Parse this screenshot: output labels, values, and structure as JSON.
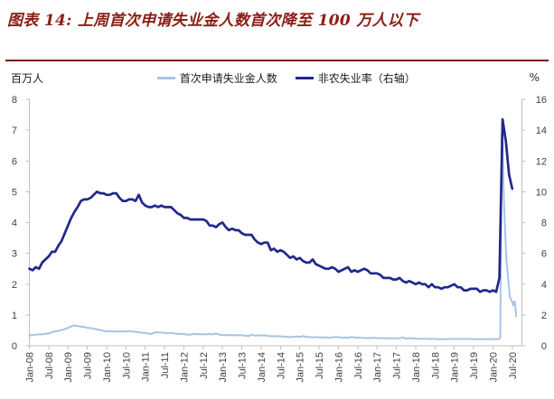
{
  "title": "图表 14: 上周首次申请失业金人数首次降至 100 万人以下",
  "colors": {
    "title_red": "#8B1E14",
    "rule_red": "#7A130D",
    "claims_blue": "#A6C4E4",
    "unemployment_navy": "#20288C",
    "axis_line": "#BFBFBF",
    "tick_text": "#404040"
  },
  "chart_data": {
    "type": "line",
    "title": "上周首次申请失业金人数首次降至 100 万人以下",
    "legend_position": "top",
    "grid": false,
    "x_tick_labels": [
      "Jan-08",
      "Jul-08",
      "Jan-09",
      "Jul-09",
      "Jan-10",
      "Jul-10",
      "Jan-11",
      "Jul-11",
      "Jan-12",
      "Jul-12",
      "Jan-13",
      "Jul-13",
      "Jan-14",
      "Jul-14",
      "Jan-15",
      "Jul-15",
      "Jan-16",
      "Jul-16",
      "Jan-17",
      "Jul-17",
      "Jan-18",
      "Jul-18",
      "Jan-19",
      "Jul-19",
      "Jan-20",
      "Jul-20"
    ],
    "left_axis": {
      "label": "百万人",
      "range": [
        0,
        8
      ],
      "tick_step": 1
    },
    "right_axis": {
      "label": "%",
      "range": [
        0,
        16
      ],
      "tick_step": 2
    },
    "x_months_span": 153,
    "series": [
      {
        "name": "首次申请失业金人数",
        "axis": "left",
        "unit": "百万人",
        "color": "#A6C4E4",
        "points_note": "pairs of [months since Jan-2008, millions of claims]; weekly detail around the 2020 spike",
        "points": [
          [
            0,
            0.33
          ],
          [
            1,
            0.35
          ],
          [
            2,
            0.36
          ],
          [
            3,
            0.37
          ],
          [
            4,
            0.37
          ],
          [
            5,
            0.39
          ],
          [
            6,
            0.4
          ],
          [
            7,
            0.44
          ],
          [
            8,
            0.47
          ],
          [
            9,
            0.48
          ],
          [
            10,
            0.51
          ],
          [
            11,
            0.54
          ],
          [
            12,
            0.58
          ],
          [
            13,
            0.63
          ],
          [
            14,
            0.66
          ],
          [
            15,
            0.64
          ],
          [
            16,
            0.62
          ],
          [
            17,
            0.61
          ],
          [
            18,
            0.58
          ],
          [
            19,
            0.57
          ],
          [
            20,
            0.55
          ],
          [
            21,
            0.53
          ],
          [
            22,
            0.51
          ],
          [
            23,
            0.48
          ],
          [
            24,
            0.47
          ],
          [
            25,
            0.47
          ],
          [
            26,
            0.46
          ],
          [
            27,
            0.46
          ],
          [
            28,
            0.46
          ],
          [
            29,
            0.47
          ],
          [
            30,
            0.46
          ],
          [
            31,
            0.48
          ],
          [
            32,
            0.46
          ],
          [
            33,
            0.45
          ],
          [
            34,
            0.44
          ],
          [
            35,
            0.42
          ],
          [
            36,
            0.42
          ],
          [
            37,
            0.39
          ],
          [
            38,
            0.39
          ],
          [
            39,
            0.43
          ],
          [
            40,
            0.43
          ],
          [
            41,
            0.43
          ],
          [
            42,
            0.42
          ],
          [
            43,
            0.41
          ],
          [
            44,
            0.42
          ],
          [
            45,
            0.4
          ],
          [
            46,
            0.39
          ],
          [
            47,
            0.38
          ],
          [
            48,
            0.38
          ],
          [
            49,
            0.36
          ],
          [
            50,
            0.36
          ],
          [
            51,
            0.39
          ],
          [
            52,
            0.37
          ],
          [
            53,
            0.38
          ],
          [
            54,
            0.37
          ],
          [
            55,
            0.37
          ],
          [
            56,
            0.38
          ],
          [
            57,
            0.37
          ],
          [
            58,
            0.4
          ],
          [
            59,
            0.36
          ],
          [
            60,
            0.35
          ],
          [
            61,
            0.35
          ],
          [
            62,
            0.34
          ],
          [
            63,
            0.34
          ],
          [
            64,
            0.34
          ],
          [
            65,
            0.35
          ],
          [
            66,
            0.34
          ],
          [
            67,
            0.33
          ],
          [
            68,
            0.31
          ],
          [
            69,
            0.36
          ],
          [
            70,
            0.33
          ],
          [
            71,
            0.34
          ],
          [
            72,
            0.33
          ],
          [
            73,
            0.34
          ],
          [
            74,
            0.32
          ],
          [
            75,
            0.31
          ],
          [
            76,
            0.31
          ],
          [
            77,
            0.31
          ],
          [
            78,
            0.3
          ],
          [
            79,
            0.3
          ],
          [
            80,
            0.29
          ],
          [
            81,
            0.28
          ],
          [
            82,
            0.29
          ],
          [
            83,
            0.3
          ],
          [
            84,
            0.29
          ],
          [
            85,
            0.31
          ],
          [
            86,
            0.29
          ],
          [
            87,
            0.28
          ],
          [
            88,
            0.27
          ],
          [
            89,
            0.28
          ],
          [
            90,
            0.27
          ],
          [
            91,
            0.27
          ],
          [
            92,
            0.27
          ],
          [
            93,
            0.26
          ],
          [
            94,
            0.27
          ],
          [
            95,
            0.28
          ],
          [
            96,
            0.28
          ],
          [
            97,
            0.26
          ],
          [
            98,
            0.27
          ],
          [
            99,
            0.26
          ],
          [
            100,
            0.28
          ],
          [
            101,
            0.27
          ],
          [
            102,
            0.26
          ],
          [
            103,
            0.26
          ],
          [
            104,
            0.25
          ],
          [
            105,
            0.25
          ],
          [
            106,
            0.25
          ],
          [
            107,
            0.26
          ],
          [
            108,
            0.25
          ],
          [
            109,
            0.24
          ],
          [
            110,
            0.25
          ],
          [
            111,
            0.24
          ],
          [
            112,
            0.24
          ],
          [
            113,
            0.24
          ],
          [
            114,
            0.24
          ],
          [
            115,
            0.24
          ],
          [
            116,
            0.27
          ],
          [
            117,
            0.23
          ],
          [
            118,
            0.24
          ],
          [
            119,
            0.24
          ],
          [
            120,
            0.23
          ],
          [
            121,
            0.22
          ],
          [
            122,
            0.23
          ],
          [
            123,
            0.23
          ],
          [
            124,
            0.22
          ],
          [
            125,
            0.22
          ],
          [
            126,
            0.22
          ],
          [
            127,
            0.21
          ],
          [
            128,
            0.21
          ],
          [
            129,
            0.21
          ],
          [
            130,
            0.22
          ],
          [
            131,
            0.22
          ],
          [
            132,
            0.22
          ],
          [
            133,
            0.22
          ],
          [
            134,
            0.22
          ],
          [
            135,
            0.22
          ],
          [
            136,
            0.22
          ],
          [
            137,
            0.22
          ],
          [
            138,
            0.21
          ],
          [
            139,
            0.21
          ],
          [
            140,
            0.21
          ],
          [
            141,
            0.21
          ],
          [
            142,
            0.21
          ],
          [
            143,
            0.22
          ],
          [
            144,
            0.21
          ],
          [
            145,
            0.21
          ],
          [
            146,
            0.22
          ],
          [
            146.25,
            0.28
          ],
          [
            146.5,
            3.31
          ],
          [
            146.75,
            6.87
          ],
          [
            147,
            6.62
          ],
          [
            147.25,
            5.24
          ],
          [
            147.5,
            4.44
          ],
          [
            147.75,
            3.87
          ],
          [
            148,
            3.18
          ],
          [
            148.25,
            2.69
          ],
          [
            148.5,
            2.45
          ],
          [
            148.75,
            2.12
          ],
          [
            149,
            1.9
          ],
          [
            149.25,
            1.57
          ],
          [
            149.5,
            1.54
          ],
          [
            149.75,
            1.48
          ],
          [
            150,
            1.42
          ],
          [
            150.25,
            1.31
          ],
          [
            150.5,
            1.42
          ],
          [
            150.75,
            1.44
          ],
          [
            151,
            1.19
          ],
          [
            151.25,
            0.96
          ]
        ]
      },
      {
        "name": "非农失业率（右轴）",
        "axis": "right",
        "unit": "%",
        "color": "#20288C",
        "start_month": "2008-01",
        "monthly_values": [
          5.0,
          4.9,
          5.1,
          5.0,
          5.4,
          5.6,
          5.8,
          6.1,
          6.1,
          6.5,
          6.8,
          7.3,
          7.8,
          8.3,
          8.7,
          9.0,
          9.4,
          9.5,
          9.5,
          9.6,
          9.8,
          10.0,
          9.9,
          9.9,
          9.8,
          9.8,
          9.9,
          9.9,
          9.6,
          9.4,
          9.4,
          9.5,
          9.5,
          9.4,
          9.8,
          9.3,
          9.1,
          9.0,
          9.0,
          9.1,
          9.0,
          9.1,
          9.0,
          9.0,
          9.0,
          8.8,
          8.6,
          8.5,
          8.3,
          8.3,
          8.2,
          8.2,
          8.2,
          8.2,
          8.2,
          8.1,
          7.8,
          7.8,
          7.7,
          7.9,
          8.0,
          7.7,
          7.5,
          7.6,
          7.5,
          7.5,
          7.3,
          7.2,
          7.2,
          7.2,
          6.9,
          6.7,
          6.6,
          6.7,
          6.7,
          6.2,
          6.3,
          6.1,
          6.2,
          6.1,
          5.9,
          5.7,
          5.8,
          5.6,
          5.7,
          5.5,
          5.4,
          5.4,
          5.6,
          5.3,
          5.2,
          5.1,
          5.0,
          5.0,
          5.1,
          5.0,
          4.8,
          4.9,
          5.0,
          5.1,
          4.8,
          4.9,
          4.8,
          4.9,
          5.0,
          4.9,
          4.7,
          4.7,
          4.7,
          4.6,
          4.4,
          4.4,
          4.4,
          4.3,
          4.3,
          4.4,
          4.2,
          4.1,
          4.2,
          4.1,
          4.0,
          4.1,
          4.0,
          4.0,
          3.8,
          4.0,
          3.8,
          3.8,
          3.7,
          3.8,
          3.8,
          3.9,
          4.0,
          3.8,
          3.8,
          3.6,
          3.6,
          3.7,
          3.7,
          3.7,
          3.5,
          3.6,
          3.6,
          3.5,
          3.6,
          3.5,
          4.4,
          14.7,
          13.3,
          11.1,
          10.2
        ]
      }
    ]
  }
}
